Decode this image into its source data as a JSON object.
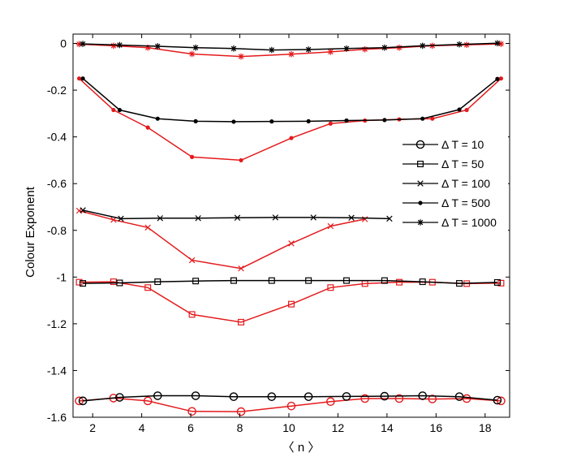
{
  "chart_data": {
    "type": "line",
    "title": "",
    "xlabel": "〈 n 〉",
    "ylabel": "Colour Exponent",
    "xlim": [
      1.2,
      19.0
    ],
    "ylim": [
      -1.6,
      0.04
    ],
    "xticks": [
      2,
      4,
      6,
      8,
      10,
      12,
      14,
      16,
      18
    ],
    "yticks": [
      0,
      -0.2,
      -0.4,
      -0.6,
      -0.8,
      -1,
      -1.2,
      -1.4,
      -1.6
    ],
    "xtick_labels": [
      "2",
      "4",
      "6",
      "8",
      "10",
      "12",
      "14",
      "16",
      "18"
    ],
    "ytick_labels": [
      "0",
      "-0.2",
      "-0.4",
      "-0.6",
      "-0.8",
      "-1",
      "-1.2",
      "-1.4",
      "-1.6"
    ],
    "grid": false,
    "legend_position": "right",
    "colors": {
      "black": "#000000",
      "red": "#e41a1c"
    },
    "legend": [
      {
        "label": "Δ T = 10",
        "marker": "circle"
      },
      {
        "label": "Δ T = 50",
        "marker": "square"
      },
      {
        "label": "Δ T = 100",
        "marker": "x"
      },
      {
        "label": "Δ T = 500",
        "marker": "dot"
      },
      {
        "label": "Δ T = 1000",
        "marker": "star"
      }
    ],
    "series": [
      {
        "name": "Δ T = 10 (black)",
        "color": "black",
        "marker": "circle",
        "x": [
          1.6,
          3.1,
          4.65,
          6.2,
          7.75,
          9.3,
          10.8,
          12.35,
          13.9,
          15.45,
          16.95,
          18.5
        ],
        "y": [
          -1.53,
          -1.515,
          -1.508,
          -1.508,
          -1.512,
          -1.512,
          -1.512,
          -1.511,
          -1.51,
          -1.508,
          -1.512,
          -1.527
        ]
      },
      {
        "name": "Δ T = 10 (red)",
        "color": "red",
        "marker": "circle",
        "x": [
          1.45,
          2.85,
          4.25,
          6.05,
          8.05,
          10.1,
          11.7,
          13.1,
          14.5,
          15.85,
          17.25,
          18.65
        ],
        "y": [
          -1.53,
          -1.518,
          -1.53,
          -1.575,
          -1.576,
          -1.552,
          -1.533,
          -1.52,
          -1.52,
          -1.522,
          -1.52,
          -1.53
        ]
      },
      {
        "name": "Δ T = 50 (black)",
        "color": "black",
        "marker": "square",
        "x": [
          1.6,
          3.1,
          4.65,
          6.2,
          7.75,
          9.3,
          10.8,
          12.35,
          13.9,
          15.45,
          16.95,
          18.5
        ],
        "y": [
          -1.027,
          -1.025,
          -1.02,
          -1.017,
          -1.015,
          -1.015,
          -1.015,
          -1.015,
          -1.015,
          -1.02,
          -1.027,
          -1.023
        ]
      },
      {
        "name": "Δ T = 50 (red)",
        "color": "red",
        "marker": "square",
        "x": [
          1.45,
          2.85,
          4.25,
          6.05,
          8.05,
          10.1,
          11.7,
          13.1,
          14.5,
          15.85,
          17.25,
          18.65
        ],
        "y": [
          -1.022,
          -1.02,
          -1.045,
          -1.16,
          -1.193,
          -1.116,
          -1.045,
          -1.028,
          -1.022,
          -1.022,
          -1.028,
          -1.026
        ]
      },
      {
        "name": "Δ T = 100 (black)",
        "color": "black",
        "marker": "x",
        "x": [
          1.6,
          3.15,
          4.75,
          6.3,
          7.9,
          9.45,
          11.0,
          12.55,
          14.1
        ],
        "y": [
          -0.714,
          -0.75,
          -0.748,
          -0.748,
          -0.746,
          -0.745,
          -0.745,
          -0.746,
          -0.75
        ]
      },
      {
        "name": "Δ T = 100 (red)",
        "color": "red",
        "marker": "x",
        "x": [
          1.45,
          2.85,
          4.25,
          6.05,
          8.05,
          10.1,
          11.7,
          13.1
        ],
        "y": [
          -0.716,
          -0.755,
          -0.788,
          -0.928,
          -0.963,
          -0.856,
          -0.782,
          -0.752
        ]
      },
      {
        "name": "Δ T = 500 (black)",
        "color": "black",
        "marker": "dot",
        "x": [
          1.6,
          3.1,
          4.65,
          6.2,
          7.75,
          9.3,
          10.8,
          12.35,
          13.9,
          15.45,
          16.95,
          18.5
        ],
        "y": [
          -0.15,
          -0.285,
          -0.322,
          -0.333,
          -0.335,
          -0.334,
          -0.333,
          -0.33,
          -0.328,
          -0.322,
          -0.283,
          -0.152
        ]
      },
      {
        "name": "Δ T = 500 (red)",
        "color": "red",
        "marker": "dot",
        "x": [
          1.45,
          2.85,
          4.25,
          6.05,
          8.05,
          10.1,
          11.7,
          13.1,
          14.5,
          15.85,
          17.25,
          18.65
        ],
        "y": [
          -0.15,
          -0.285,
          -0.36,
          -0.486,
          -0.5,
          -0.405,
          -0.343,
          -0.33,
          -0.325,
          -0.322,
          -0.285,
          -0.15
        ]
      },
      {
        "name": "Δ T = 1000 (black)",
        "color": "black",
        "marker": "star",
        "x": [
          1.6,
          3.1,
          4.65,
          6.2,
          7.75,
          9.3,
          10.8,
          12.35,
          13.9,
          15.45,
          16.95,
          18.5
        ],
        "y": [
          -0.002,
          -0.007,
          -0.012,
          -0.018,
          -0.022,
          -0.028,
          -0.026,
          -0.022,
          -0.018,
          -0.01,
          -0.004,
          0.001
        ]
      },
      {
        "name": "Δ T = 1000 (red)",
        "color": "red",
        "marker": "star",
        "x": [
          1.45,
          2.85,
          4.25,
          6.05,
          8.05,
          10.1,
          11.7,
          13.1,
          14.5,
          15.85,
          17.25,
          18.65
        ],
        "y": [
          -0.003,
          -0.01,
          -0.018,
          -0.045,
          -0.056,
          -0.046,
          -0.036,
          -0.025,
          -0.018,
          -0.01,
          -0.006,
          -0.002
        ]
      }
    ]
  }
}
